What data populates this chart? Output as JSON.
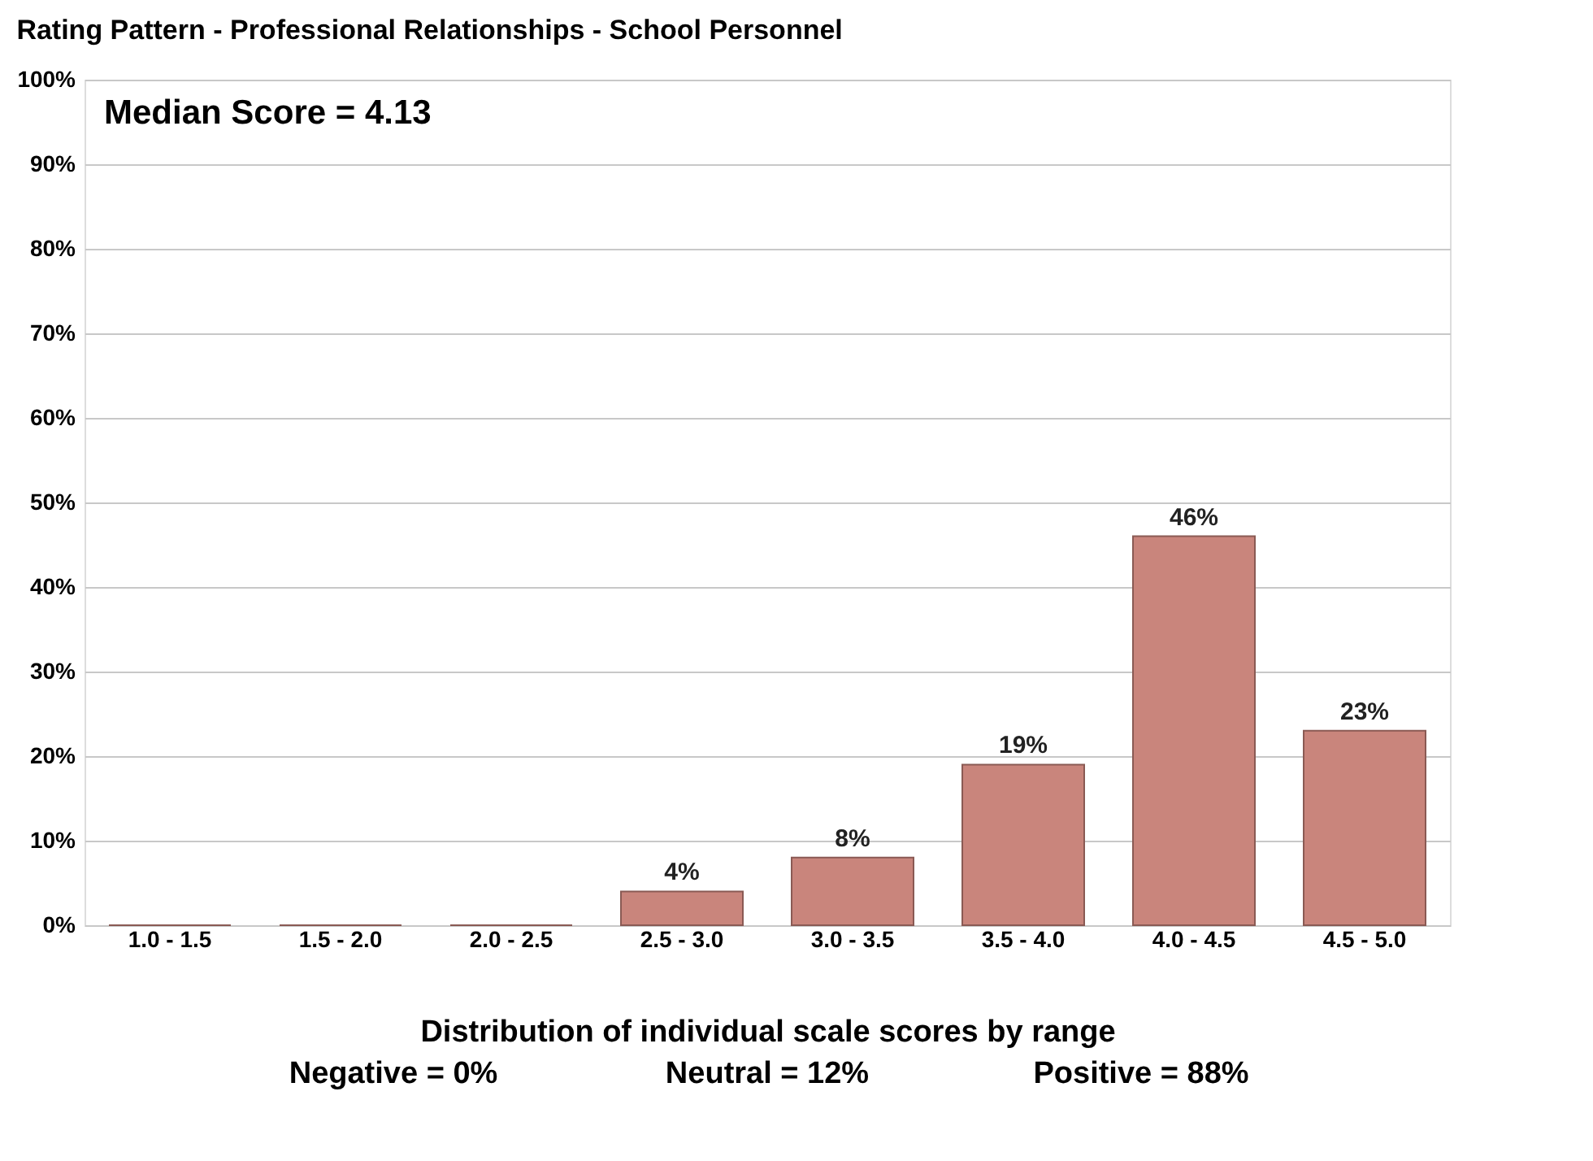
{
  "chart_data": {
    "type": "bar",
    "title": "Rating Pattern - Professional Relationships - School Personnel",
    "categories": [
      "1.0 - 1.5",
      "1.5 - 2.0",
      "2.0 - 2.5",
      "2.5 - 3.0",
      "3.0 - 3.5",
      "3.5 - 4.0",
      "4.0 - 4.5",
      "4.5 - 5.0"
    ],
    "values": [
      0,
      0,
      0,
      4,
      8,
      19,
      46,
      23
    ],
    "value_labels": [
      null,
      null,
      null,
      "4%",
      "8%",
      "19%",
      "46%",
      "23%"
    ],
    "color": "#c9857c",
    "xlabel": "Distribution of individual scale scores by range",
    "ylim": [
      0,
      100
    ],
    "yticks": [
      {
        "value": 0,
        "label": "0%"
      },
      {
        "value": 10,
        "label": "10%"
      },
      {
        "value": 20,
        "label": "20%"
      },
      {
        "value": 30,
        "label": "30%"
      },
      {
        "value": 40,
        "label": "40%"
      },
      {
        "value": 50,
        "label": "50%"
      },
      {
        "value": 60,
        "label": "60%"
      },
      {
        "value": 70,
        "label": "70%"
      },
      {
        "value": 80,
        "label": "80%"
      },
      {
        "value": 90,
        "label": "90%"
      },
      {
        "value": 100,
        "label": "100%"
      }
    ],
    "grid": "y",
    "annotations": [
      "Median Score = 4.13",
      "Negative = 0%",
      "Neutral = 12%",
      "Positive = 88%"
    ]
  }
}
